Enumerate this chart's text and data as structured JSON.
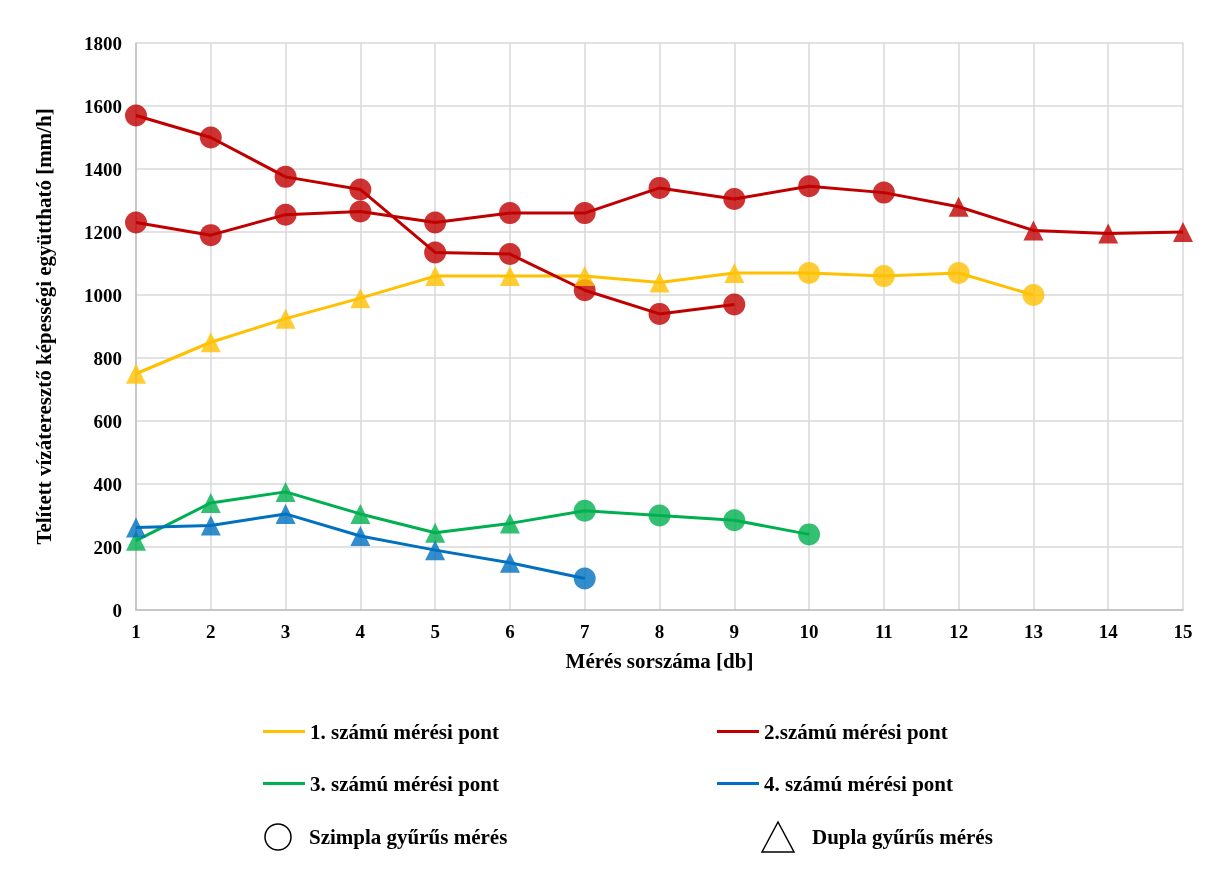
{
  "chart_data": {
    "type": "line",
    "xlabel": "Mérés sorszáma [db]",
    "ylabel": "Telített vízáteresztő képességi együttható [mm/h]",
    "xlim": [
      1,
      15
    ],
    "xticks": [
      1,
      2,
      3,
      4,
      5,
      6,
      7,
      8,
      9,
      10,
      11,
      12,
      13,
      14,
      15
    ],
    "ylim": [
      0,
      1800
    ],
    "yticks": [
      0,
      200,
      400,
      600,
      800,
      1000,
      1200,
      1400,
      1600,
      1800
    ],
    "annotations": [
      "Szimpla gyűrűs mérés",
      "Dupla gyűrűs mérés"
    ],
    "grid": true,
    "legend": "bottom",
    "marker": "none",
    "line_style": "solid",
    "series": [
      {
        "name": "1. számú mérési pont",
        "color": "#ffc000",
        "x": [
          1,
          2,
          3,
          4,
          5,
          6,
          7,
          8,
          9,
          10,
          11,
          12,
          13
        ],
        "values": [
          750,
          850,
          925,
          990,
          1060,
          1060,
          1060,
          1040,
          1070,
          1070,
          1060,
          1070,
          1000
        ]
      },
      {
        "name": "2.számú mérési pont",
        "color": "#c00000",
        "x": [
          1,
          2,
          3,
          4,
          5,
          6,
          7,
          8,
          9
        ],
        "values": [
          1570,
          1500,
          1375,
          1335,
          1135,
          1130,
          1015,
          940,
          970
        ]
      },
      {
        "color": "#c00000",
        "x": [
          1,
          2,
          3,
          4,
          5,
          6,
          7,
          8,
          9,
          10,
          11,
          12,
          13,
          14,
          15
        ],
        "values": [
          1230,
          1190,
          1255,
          1265,
          1230,
          1260,
          1260,
          1340,
          1305,
          1345,
          1325,
          1280,
          1205,
          1195,
          1200
        ]
      },
      {
        "name": "3. számú mérési pont",
        "color": "#00b050",
        "x": [
          1,
          2,
          3,
          4,
          5,
          6,
          7,
          8,
          9,
          10
        ],
        "values": [
          220,
          340,
          375,
          305,
          245,
          275,
          315,
          300,
          285,
          240
        ]
      },
      {
        "name": "4. számú mérési pont",
        "color": "#0070c0",
        "x": [
          1,
          2,
          3,
          4,
          5,
          6,
          7
        ],
        "values": [
          262,
          268,
          305,
          235,
          190,
          150,
          100
        ]
      },
      {
        "type": "scatter",
        "marker": "circle",
        "x": [
          10,
          11,
          12,
          13,
          1,
          2,
          3,
          4,
          5,
          6,
          7,
          8,
          9,
          1,
          2,
          3,
          4,
          5,
          6,
          7,
          8,
          9,
          10,
          11,
          7,
          8,
          9,
          10,
          7
        ],
        "values": [
          1070,
          1060,
          1070,
          1000,
          1570,
          1500,
          1375,
          1335,
          1135,
          1130,
          1015,
          940,
          970,
          1230,
          1190,
          1255,
          1265,
          1230,
          1260,
          1260,
          1340,
          1305,
          1345,
          1325,
          315,
          300,
          285,
          240,
          100
        ],
        "colors": [
          "#ffc000",
          "#ffc000",
          "#ffc000",
          "#ffc000",
          "#c00000",
          "#c00000",
          "#c00000",
          "#c00000",
          "#c00000",
          "#c00000",
          "#c00000",
          "#c00000",
          "#c00000",
          "#c00000",
          "#c00000",
          "#c00000",
          "#c00000",
          "#c00000",
          "#c00000",
          "#c00000",
          "#c00000",
          "#c00000",
          "#c00000",
          "#c00000",
          "#00b050",
          "#00b050",
          "#00b050",
          "#00b050",
          "#0070c0"
        ]
      },
      {
        "type": "scatter",
        "marker": "triangle",
        "x": [
          1,
          2,
          3,
          4,
          5,
          6,
          7,
          8,
          9,
          12,
          13,
          14,
          15,
          1,
          2,
          3,
          4,
          5,
          6,
          1,
          2,
          3,
          4,
          5,
          6
        ],
        "values": [
          750,
          850,
          925,
          990,
          1060,
          1060,
          1060,
          1040,
          1070,
          1280,
          1205,
          1195,
          1200,
          220,
          340,
          375,
          305,
          245,
          275,
          262,
          268,
          305,
          235,
          190,
          150
        ],
        "colors": [
          "#ffc000",
          "#ffc000",
          "#ffc000",
          "#ffc000",
          "#ffc000",
          "#ffc000",
          "#ffc000",
          "#ffc000",
          "#ffc000",
          "#c00000",
          "#c00000",
          "#c00000",
          "#c00000",
          "#00b050",
          "#00b050",
          "#00b050",
          "#00b050",
          "#00b050",
          "#00b050",
          "#0070c0",
          "#0070c0",
          "#0070c0",
          "#0070c0",
          "#0070c0",
          "#0070c0"
        ]
      }
    ]
  }
}
